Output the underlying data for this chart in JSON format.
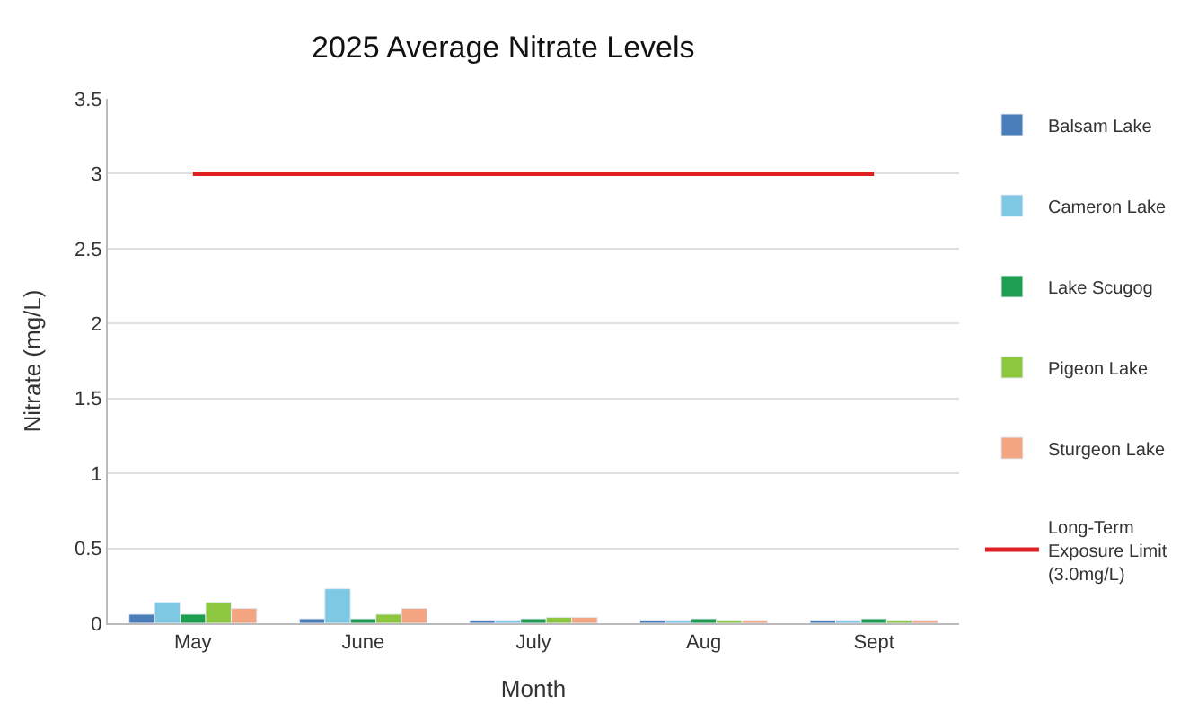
{
  "chart_data": {
    "type": "bar",
    "title": "2025 Average Nitrate Levels",
    "xlabel": "Month",
    "ylabel": "Nitrate (mg/L)",
    "categories": [
      "May",
      "June",
      "July",
      "Aug",
      "Sept"
    ],
    "series": [
      {
        "name": "Balsam Lake",
        "color": "#4a7ebb",
        "values": [
          0.06,
          0.03,
          0.02,
          0.02,
          0.02
        ]
      },
      {
        "name": "Cameron Lake",
        "color": "#7ec8e3",
        "values": [
          0.14,
          0.23,
          0.02,
          0.02,
          0.02
        ]
      },
      {
        "name": "Lake Scugog",
        "color": "#1e9e50",
        "values": [
          0.06,
          0.03,
          0.03,
          0.03,
          0.03
        ]
      },
      {
        "name": "Pigeon Lake",
        "color": "#8dc63f",
        "values": [
          0.14,
          0.06,
          0.04,
          0.02,
          0.02
        ]
      },
      {
        "name": "Sturgeon Lake",
        "color": "#f4a582",
        "values": [
          0.1,
          0.1,
          0.04,
          0.02,
          0.02
        ]
      },
      {
        "name": "Long-Term Exposure Limit (3.0mg/L)",
        "color": "#e02020",
        "type": "line",
        "values": [
          3,
          3,
          3,
          3,
          3
        ]
      }
    ],
    "ylim": [
      0,
      3.5
    ],
    "yticks": [
      0,
      0.5,
      1,
      1.5,
      2,
      2.5,
      3,
      3.5
    ],
    "grid": "y",
    "legend": "right",
    "marker": "none",
    "line_style": "solid"
  }
}
